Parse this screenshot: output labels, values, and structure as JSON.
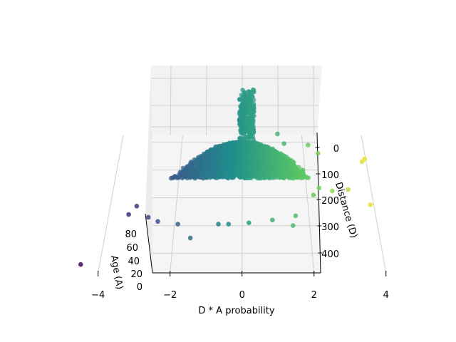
{
  "chart_data": {
    "type": "scatter",
    "projection": "3d",
    "title": "",
    "xlabel": "D * A probability",
    "ylabel": "Distance (D)",
    "zlabel": "Age (A)",
    "x_ticks": [
      "−4",
      "−2",
      "0",
      "2",
      "4"
    ],
    "y_ticks": [
      "0",
      "100",
      "200",
      "300",
      "400"
    ],
    "z_ticks": [
      "0",
      "20",
      "40",
      "60",
      "80"
    ],
    "xlim": [
      -4.7,
      4.3
    ],
    "ylim": [
      -40,
      460
    ],
    "zlim": [
      0,
      90
    ],
    "colormap": "viridis",
    "color_by": "D * A probability",
    "grid": true,
    "legend": "none",
    "dense_region": {
      "description": "thousands of overlapping points forming a fan",
      "x_range": [
        -2.3,
        2.2
      ],
      "y_range": [
        0,
        130
      ]
    },
    "series": [
      {
        "points": [
          {
            "x": -4.5,
            "y": 440,
            "z": 5
          },
          {
            "x": -3.4,
            "y": 260,
            "z": 5
          },
          {
            "x": -3.2,
            "y": 230,
            "z": 5
          },
          {
            "x": -2.8,
            "y": 270,
            "z": 5
          },
          {
            "x": -2.5,
            "y": 285,
            "z": 5
          },
          {
            "x": -1.9,
            "y": 295,
            "z": 5
          },
          {
            "x": -1.5,
            "y": 345,
            "z": 5
          },
          {
            "x": -0.7,
            "y": 295,
            "z": 5
          },
          {
            "x": -0.4,
            "y": 295,
            "z": 5
          },
          {
            "x": 0.2,
            "y": 290,
            "z": 5
          },
          {
            "x": 0.9,
            "y": 280,
            "z": 5
          },
          {
            "x": 1.5,
            "y": 300,
            "z": 5
          },
          {
            "x": 1.6,
            "y": 265,
            "z": 5
          },
          {
            "x": 2.2,
            "y": 190,
            "z": 5
          },
          {
            "x": 2.4,
            "y": 165,
            "z": 5
          },
          {
            "x": 2.8,
            "y": 175,
            "z": 5
          },
          {
            "x": 3.3,
            "y": 170,
            "z": 5
          },
          {
            "x": 3.9,
            "y": 70,
            "z": 5
          },
          {
            "x": 4.0,
            "y": 60,
            "z": 5
          },
          {
            "x": 3.9,
            "y": 225,
            "z": 5
          },
          {
            "x": 1.2,
            "y": -30,
            "z": 5
          },
          {
            "x": 2.2,
            "y": 10,
            "z": 5
          },
          {
            "x": 2.5,
            "y": 40,
            "z": 5
          },
          {
            "x": 1.4,
            "y": 5,
            "z": 5
          }
        ]
      }
    ]
  }
}
